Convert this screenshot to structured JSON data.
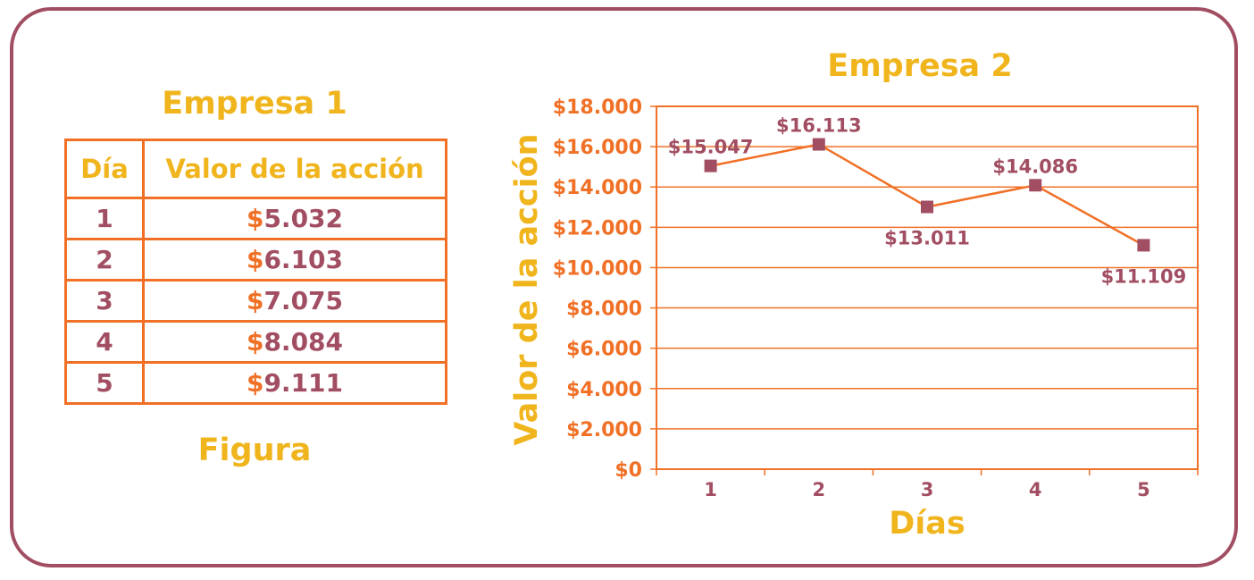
{
  "table": {
    "title": "Empresa 1",
    "headers": [
      "Día",
      "Valor de la acción"
    ],
    "rows": [
      {
        "day": "1",
        "symbol": "$",
        "amount": "5.032"
      },
      {
        "day": "2",
        "symbol": "$",
        "amount": "6.103"
      },
      {
        "day": "3",
        "symbol": "$",
        "amount": "7.075"
      },
      {
        "day": "4",
        "symbol": "$",
        "amount": "8.084"
      },
      {
        "day": "5",
        "symbol": "$",
        "amount": "9.111"
      }
    ],
    "figure_label": "Figura"
  },
  "colors": {
    "border": "#a24e62",
    "accent_orange": "#f07026",
    "title_yellow": "#f0b41c",
    "marker": "#a24e62"
  },
  "chart_data": {
    "type": "line",
    "title": "Empresa 2",
    "xlabel": "Días",
    "ylabel": "Valor de la acción",
    "x": [
      1,
      2,
      3,
      4,
      5
    ],
    "x_tick_labels": [
      "1",
      "2",
      "3",
      "4",
      "5"
    ],
    "ylim": [
      0,
      18000
    ],
    "y_ticks": [
      0,
      2000,
      4000,
      6000,
      8000,
      10000,
      12000,
      14000,
      16000,
      18000
    ],
    "y_tick_labels": [
      "$0",
      "$2.000",
      "$4.000",
      "$6.000",
      "$8.000",
      "$10.000",
      "$12.000",
      "$14.000",
      "$16.000",
      "$18.000"
    ],
    "grid": true,
    "series": [
      {
        "values": [
          15047,
          16113,
          13011,
          14086,
          11109
        ],
        "data_labels": [
          "$15.047",
          "$16.113",
          "$13.011",
          "$14.086",
          "$11.109"
        ],
        "marker": "square"
      }
    ]
  }
}
